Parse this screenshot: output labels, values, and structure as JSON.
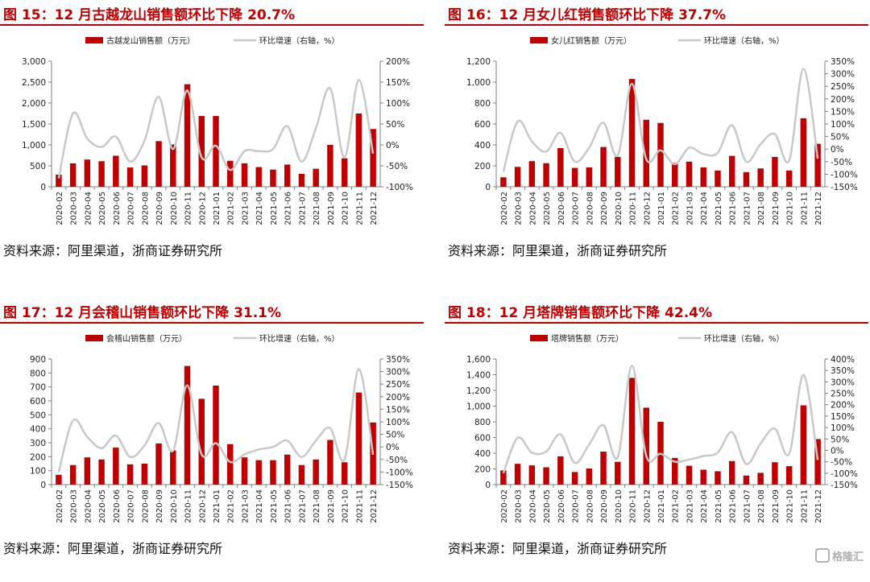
{
  "panels": [
    {
      "title": "图 15：12 月古越龙山销售额环比下降 20.7%",
      "source": "资料来源：阿里渠道，浙商证券研究所",
      "chart_data": {
        "type": "bar",
        "categories": [
          "2020-02",
          "2020-03",
          "2020-04",
          "2020-05",
          "2020-06",
          "2020-07",
          "2020-08",
          "2020-09",
          "2020-10",
          "2020-11",
          "2020-12",
          "2021-01",
          "2021-02",
          "2021-03",
          "2021-04",
          "2021-05",
          "2021-06",
          "2021-07",
          "2021-08",
          "2021-09",
          "2021-10",
          "2021-11",
          "2021-12"
        ],
        "series": [
          {
            "name": "古越龙山销售额（万元）",
            "axis": "left",
            "type": "bar",
            "values": [
              290,
              560,
              650,
              610,
              740,
              460,
              510,
              1090,
              1010,
              2450,
              1690,
              1690,
              620,
              560,
              470,
              410,
              530,
              310,
              430,
              1000,
              680,
              1750,
              1380
            ]
          },
          {
            "name": "环比增速（右轴，%）",
            "axis": "right",
            "type": "line",
            "values": [
              -80,
              75,
              15,
              -5,
              20,
              -40,
              10,
              115,
              -10,
              130,
              -30,
              -2,
              -60,
              -15,
              -15,
              -10,
              45,
              -40,
              40,
              135,
              -30,
              155,
              -21
            ]
          }
        ],
        "ylim": [
          0,
          3000
        ],
        "yticks": [
          0,
          500,
          1000,
          1500,
          2000,
          2500,
          3000
        ],
        "y2lim": [
          -100,
          200
        ],
        "y2ticks": [
          -100,
          -50,
          0,
          50,
          100,
          150,
          200
        ],
        "legend": "top-center",
        "grid": false
      },
      "yticklabels": [
        "0",
        "500",
        "1,000",
        "1,500",
        "2,000",
        "2,500",
        "3,000"
      ],
      "y2ticklabels": [
        "-100%",
        "-50%",
        "0%",
        "50%",
        "100%",
        "150%",
        "200%"
      ]
    },
    {
      "title": "图 16：12 月女儿红销售额环比下降 37.7%",
      "source": "资料来源：阿里渠道，浙商证券研究所",
      "chart_data": {
        "type": "bar",
        "categories": [
          "2020-02",
          "2020-03",
          "2020-04",
          "2020-05",
          "2020-06",
          "2020-07",
          "2020-08",
          "2020-09",
          "2020-10",
          "2020-11",
          "2020-12",
          "2021-01",
          "2021-02",
          "2021-03",
          "2021-04",
          "2021-05",
          "2021-06",
          "2021-07",
          "2021-08",
          "2021-09",
          "2021-10",
          "2021-11",
          "2021-12"
        ],
        "series": [
          {
            "name": "女儿红销售额（万元）",
            "axis": "left",
            "type": "bar",
            "values": [
              90,
              190,
              245,
              225,
              370,
              180,
              185,
              380,
              285,
              1030,
              640,
              610,
              230,
              240,
              185,
              155,
              295,
              140,
              175,
              285,
              155,
              655,
              410
            ]
          },
          {
            "name": "环比增速（右轴，%）",
            "axis": "right",
            "type": "line",
            "values": [
              -90,
              110,
              30,
              -10,
              65,
              -50,
              5,
              105,
              -25,
              260,
              -40,
              -5,
              -60,
              5,
              -20,
              -15,
              95,
              -50,
              20,
              60,
              -45,
              320,
              -38
            ]
          }
        ],
        "ylim": [
          0,
          1200
        ],
        "yticks": [
          0,
          200,
          400,
          600,
          800,
          1000,
          1200
        ],
        "y2lim": [
          -150,
          350
        ],
        "y2ticks": [
          -150,
          -100,
          -50,
          0,
          50,
          100,
          150,
          200,
          250,
          300,
          350
        ],
        "legend": "top-center",
        "grid": false
      },
      "yticklabels": [
        "0",
        "200",
        "400",
        "600",
        "800",
        "1,000",
        "1,200"
      ],
      "y2ticklabels": [
        "-150%",
        "-100%",
        "-50%",
        "0%",
        "50%",
        "100%",
        "150%",
        "200%",
        "250%",
        "300%",
        "350%"
      ]
    },
    {
      "title": "图 17：12 月会稽山销售额环比下降 31.1%",
      "source": "资料来源：阿里渠道，浙商证券研究所",
      "chart_data": {
        "type": "bar",
        "categories": [
          "2020-02",
          "2020-03",
          "2020-04",
          "2020-05",
          "2020-06",
          "2020-07",
          "2020-08",
          "2020-09",
          "2020-10",
          "2020-11",
          "2020-12",
          "2021-01",
          "2021-02",
          "2021-03",
          "2021-04",
          "2021-05",
          "2021-06",
          "2021-07",
          "2021-08",
          "2021-09",
          "2021-10",
          "2021-11",
          "2021-12"
        ],
        "series": [
          {
            "name": "会稽山销售额（万元）",
            "axis": "left",
            "type": "bar",
            "values": [
              70,
              140,
              195,
              180,
              265,
              145,
              150,
              295,
              245,
              850,
              615,
              710,
              290,
              195,
              175,
              175,
              215,
              140,
              180,
              320,
              160,
              660,
              445
            ]
          },
          {
            "name": "环比增速（右轴，%）",
            "axis": "right",
            "type": "line",
            "values": [
              -100,
              105,
              40,
              -5,
              45,
              -40,
              5,
              95,
              -15,
              245,
              -30,
              15,
              -60,
              -30,
              -10,
              0,
              25,
              -40,
              25,
              75,
              -50,
              310,
              -31
            ]
          }
        ],
        "ylim": [
          0,
          900
        ],
        "yticks": [
          0,
          100,
          200,
          300,
          400,
          500,
          600,
          700,
          800,
          900
        ],
        "y2lim": [
          -150,
          350
        ],
        "y2ticks": [
          -150,
          -100,
          -50,
          0,
          50,
          100,
          150,
          200,
          250,
          300,
          350
        ],
        "legend": "top-center",
        "grid": false
      },
      "yticklabels": [
        "0",
        "100",
        "200",
        "300",
        "400",
        "500",
        "600",
        "700",
        "800",
        "900"
      ],
      "y2ticklabels": [
        "-150%",
        "-100%",
        "-50%",
        "0%",
        "50%",
        "100%",
        "150%",
        "200%",
        "250%",
        "300%",
        "350%"
      ]
    },
    {
      "title": "图 18：12 月塔牌销售额环比下降 42.4%",
      "source": "资料来源：阿里渠道，浙商证券研究所",
      "chart_data": {
        "type": "bar",
        "categories": [
          "2020-02",
          "2020-03",
          "2020-04",
          "2020-05",
          "2020-06",
          "2020-07",
          "2020-08",
          "2020-09",
          "2020-10",
          "2020-11",
          "2020-12",
          "2021-01",
          "2021-02",
          "2021-03",
          "2021-04",
          "2021-05",
          "2021-06",
          "2021-07",
          "2021-08",
          "2021-09",
          "2021-10",
          "2021-11",
          "2021-12"
        ],
        "series": [
          {
            "name": "塔牌销售额（万元）",
            "axis": "left",
            "type": "bar",
            "values": [
              180,
              265,
              245,
              220,
              360,
              160,
              205,
              420,
              290,
              1360,
              980,
              800,
              340,
              240,
              190,
              170,
              300,
              115,
              150,
              285,
              235,
              1010,
              580
            ]
          },
          {
            "name": "环比增速（右轴，%）",
            "axis": "right",
            "type": "line",
            "values": [
              -100,
              55,
              -10,
              -5,
              70,
              -55,
              25,
              110,
              -30,
              370,
              -25,
              -15,
              -50,
              -40,
              -25,
              -10,
              80,
              -60,
              30,
              95,
              -15,
              330,
              -42
            ]
          }
        ],
        "ylim": [
          0,
          1600
        ],
        "yticks": [
          0,
          200,
          400,
          600,
          800,
          1000,
          1200,
          1400,
          1600
        ],
        "y2lim": [
          -150,
          400
        ],
        "y2ticks": [
          -150,
          -100,
          -50,
          0,
          50,
          100,
          150,
          200,
          250,
          300,
          350,
          400
        ],
        "legend": "top-center",
        "grid": false
      },
      "yticklabels": [
        "0",
        "200",
        "400",
        "600",
        "800",
        "1,000",
        "1,200",
        "1,400",
        "1,600"
      ],
      "y2ticklabels": [
        "-150%",
        "-100%",
        "-50%",
        "0%",
        "50%",
        "100%",
        "150%",
        "200%",
        "250%",
        "300%",
        "350%",
        "400%"
      ]
    }
  ],
  "colors": {
    "bar": "#c00000",
    "line": "#c8c8c8",
    "title": "#c00000",
    "axis": "#808080"
  },
  "watermark": {
    "text": "格隆汇",
    "icon": "gelonghui-logo-icon"
  }
}
